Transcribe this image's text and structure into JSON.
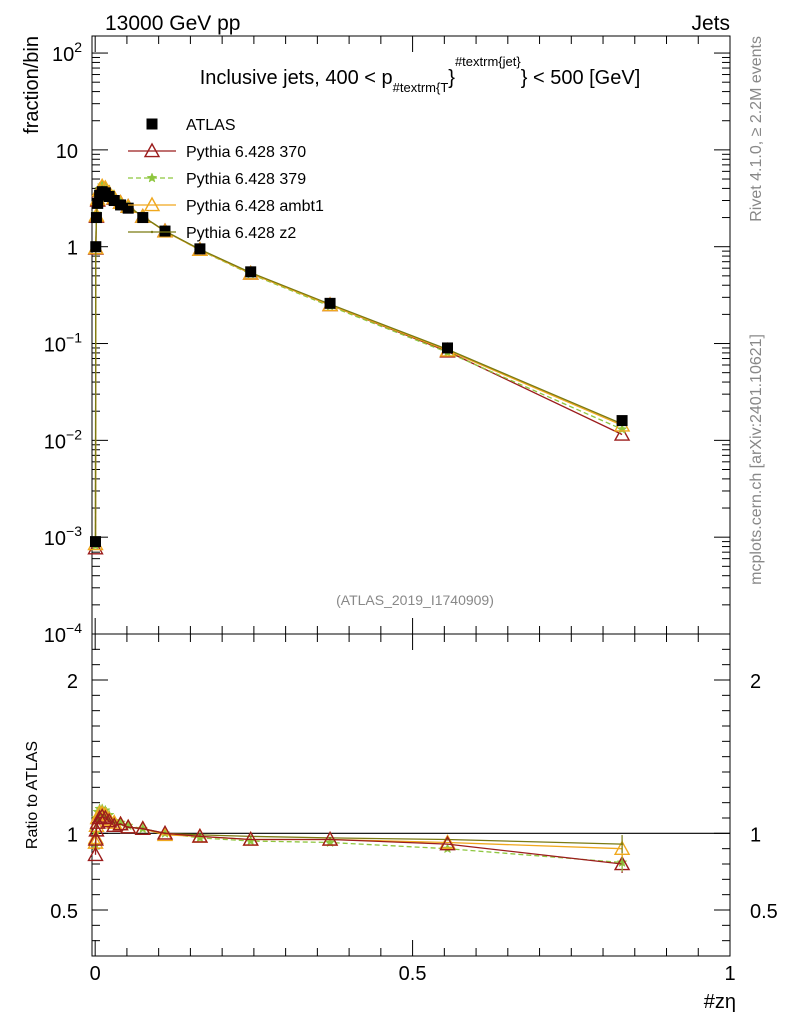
{
  "header": {
    "left": "13000 GeV pp",
    "right": "Jets"
  },
  "side_text": {
    "rivet": "Rivet 4.1.0, ≥ 2.2M events",
    "mcplots": "mcplots.cern.ch [arXiv:2401.10621]"
  },
  "colors": {
    "atlas": "#000000",
    "p370": "#9b1c1c",
    "p379": "#8ec63f",
    "ambt1": "#f0a81e",
    "z2": "#7a7a12"
  },
  "chart_data": [
    {
      "type": "line",
      "panel": "main",
      "title_parts": {
        "pre": "Inclusive jets, 400 < p",
        "sub": "#textrm{T",
        "sup": "#textrm{jet}",
        "post": "} < 500 [GeV]"
      },
      "ylabel": "fraction/bin",
      "yscale": "log",
      "ylim": [
        0.0001,
        150
      ],
      "xlim": [
        -0.005,
        1.0
      ],
      "yticks": [
        {
          "base": "10",
          "exp": "2",
          "value": 100
        },
        {
          "base": "10",
          "exp": "",
          "value": 10
        },
        {
          "base": "1",
          "exp": "",
          "value": 1
        },
        {
          "base": "10",
          "exp": "−1",
          "value": 0.1
        },
        {
          "base": "10",
          "exp": "−2",
          "value": 0.01
        },
        {
          "base": "10",
          "exp": "−3",
          "value": 0.001
        },
        {
          "base": "10",
          "exp": "−4",
          "value": 0.0001
        }
      ],
      "watermark": "(ATLAS_2019_I1740909)",
      "series": [
        {
          "name": "ATLAS",
          "style": "data",
          "x": [
            0.0005,
            0.001,
            0.002,
            0.004,
            0.007,
            0.011,
            0.016,
            0.022,
            0.03,
            0.04,
            0.052,
            0.075,
            0.11,
            0.165,
            0.245,
            0.37,
            0.555,
            0.83
          ],
          "y": [
            0.0009,
            1.0,
            2.0,
            2.8,
            3.4,
            3.7,
            3.6,
            3.3,
            3.0,
            2.7,
            2.5,
            2.0,
            1.45,
            0.95,
            0.55,
            0.26,
            0.09,
            0.016
          ]
        },
        {
          "name": "Pythia 6.428 370",
          "style": "triangle-open",
          "color": "#9b1c1c",
          "x": [
            0.0005,
            0.001,
            0.002,
            0.004,
            0.007,
            0.011,
            0.016,
            0.022,
            0.03,
            0.04,
            0.052,
            0.075,
            0.11,
            0.165,
            0.245,
            0.37,
            0.555,
            0.83
          ],
          "y": [
            0.00077,
            0.96,
            2.05,
            3.0,
            3.75,
            4.1,
            3.95,
            3.55,
            3.15,
            2.85,
            2.6,
            2.05,
            1.45,
            0.93,
            0.53,
            0.25,
            0.083,
            0.0115
          ]
        },
        {
          "name": "Pythia 6.428 379",
          "style": "star-dashed",
          "color": "#8ec63f",
          "x": [
            0.0005,
            0.001,
            0.002,
            0.004,
            0.007,
            0.011,
            0.016,
            0.022,
            0.03,
            0.04,
            0.052,
            0.075,
            0.11,
            0.165,
            0.245,
            0.37,
            0.555,
            0.83
          ],
          "y": [
            0.00082,
            1.0,
            2.2,
            3.2,
            3.95,
            4.3,
            4.15,
            3.7,
            3.25,
            2.9,
            2.62,
            2.06,
            1.45,
            0.92,
            0.52,
            0.243,
            0.081,
            0.013
          ]
        },
        {
          "name": "Pythia 6.428 ambt1",
          "style": "triangle-open",
          "color": "#f0a81e",
          "x": [
            0.0005,
            0.001,
            0.002,
            0.004,
            0.007,
            0.011,
            0.016,
            0.022,
            0.03,
            0.04,
            0.052,
            0.075,
            0.11,
            0.165,
            0.245,
            0.37,
            0.555,
            0.83
          ],
          "y": [
            0.00085,
            0.97,
            2.1,
            3.1,
            3.85,
            4.2,
            4.05,
            3.6,
            3.2,
            2.85,
            2.6,
            2.05,
            1.44,
            0.93,
            0.53,
            0.25,
            0.085,
            0.0143
          ]
        },
        {
          "name": "Pythia 6.428 z2",
          "style": "line",
          "color": "#7a7a12",
          "x": [
            0.0005,
            0.001,
            0.002,
            0.004,
            0.007,
            0.011,
            0.016,
            0.022,
            0.03,
            0.04,
            0.052,
            0.075,
            0.11,
            0.165,
            0.245,
            0.37,
            0.555,
            0.83
          ],
          "y": [
            0.00088,
            0.99,
            2.1,
            3.05,
            3.8,
            4.15,
            4.0,
            3.6,
            3.2,
            2.85,
            2.6,
            2.05,
            1.45,
            0.94,
            0.54,
            0.255,
            0.087,
            0.0148
          ]
        }
      ]
    },
    {
      "type": "line",
      "panel": "ratio",
      "ylabel": "Ratio to ATLAS",
      "xlabel": "#zη",
      "ylim": [
        0.2,
        2.3
      ],
      "xlim": [
        -0.005,
        1.0
      ],
      "yticks": [
        {
          "label": "0.5",
          "value": 0.5
        },
        {
          "label": "1",
          "value": 1
        },
        {
          "label": "2",
          "value": 2
        }
      ],
      "xticks": [
        {
          "label": "0",
          "value": 0
        },
        {
          "label": "0.5",
          "value": 0.5
        },
        {
          "label": "1",
          "value": 1
        }
      ],
      "series": [
        {
          "name": "Pythia 6.428 370",
          "style": "triangle-open",
          "color": "#9b1c1c",
          "x": [
            0.0005,
            0.001,
            0.002,
            0.004,
            0.007,
            0.011,
            0.016,
            0.022,
            0.03,
            0.04,
            0.052,
            0.075,
            0.11,
            0.165,
            0.245,
            0.37,
            0.555,
            0.83
          ],
          "y": [
            0.86,
            0.96,
            1.02,
            1.07,
            1.1,
            1.11,
            1.1,
            1.08,
            1.05,
            1.06,
            1.04,
            1.03,
            1.0,
            0.98,
            0.96,
            0.96,
            0.93,
            0.8
          ]
        },
        {
          "name": "Pythia 6.428 379",
          "style": "star-dashed",
          "color": "#8ec63f",
          "x": [
            0.0005,
            0.001,
            0.002,
            0.004,
            0.007,
            0.011,
            0.016,
            0.022,
            0.03,
            0.04,
            0.052,
            0.075,
            0.11,
            0.165,
            0.245,
            0.37,
            0.555,
            0.83
          ],
          "y": [
            0.92,
            1.0,
            1.1,
            1.14,
            1.16,
            1.16,
            1.15,
            1.12,
            1.08,
            1.07,
            1.05,
            1.03,
            1.0,
            0.97,
            0.95,
            0.94,
            0.9,
            0.81
          ]
        },
        {
          "name": "Pythia 6.428 ambt1",
          "style": "triangle-open",
          "color": "#f0a81e",
          "x": [
            0.0005,
            0.001,
            0.002,
            0.004,
            0.007,
            0.011,
            0.016,
            0.022,
            0.03,
            0.04,
            0.052,
            0.075,
            0.11,
            0.165,
            0.245,
            0.37,
            0.555,
            0.83
          ],
          "y": [
            0.94,
            0.97,
            1.05,
            1.1,
            1.13,
            1.13,
            1.12,
            1.09,
            1.07,
            1.06,
            1.04,
            1.03,
            0.99,
            0.98,
            0.96,
            0.96,
            0.94,
            0.9
          ]
        },
        {
          "name": "Pythia 6.428 z2",
          "style": "line",
          "color": "#7a7a12",
          "x": [
            0.0005,
            0.001,
            0.002,
            0.004,
            0.007,
            0.011,
            0.016,
            0.022,
            0.03,
            0.04,
            0.052,
            0.075,
            0.11,
            0.165,
            0.245,
            0.37,
            0.555,
            0.83
          ],
          "y": [
            0.98,
            0.99,
            1.05,
            1.09,
            1.12,
            1.12,
            1.11,
            1.09,
            1.07,
            1.06,
            1.04,
            1.03,
            1.0,
            0.99,
            0.98,
            0.97,
            0.96,
            0.93
          ]
        }
      ]
    }
  ]
}
